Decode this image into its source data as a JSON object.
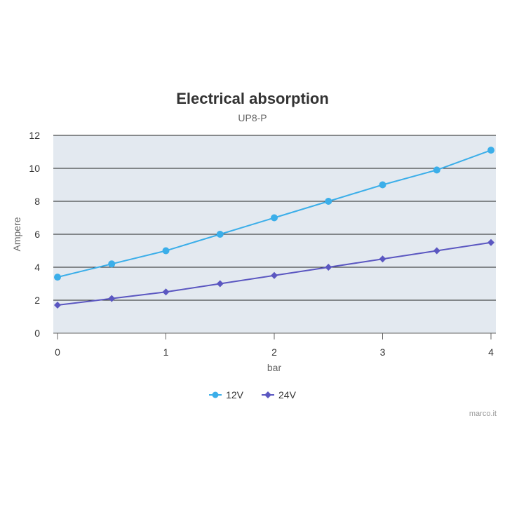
{
  "chart_data": {
    "type": "line",
    "title": "Electrical absorption",
    "subtitle": "UP8-P",
    "xlabel": "bar",
    "ylabel": "Ampere",
    "xlim": [
      0,
      4
    ],
    "ylim": [
      0,
      12
    ],
    "x_ticks": [
      "0",
      "1",
      "2",
      "3",
      "4"
    ],
    "y_ticks": [
      "0",
      "2",
      "4",
      "6",
      "8",
      "10",
      "12"
    ],
    "grid": true,
    "legend_position": "bottom-center",
    "plot_background": "#e3e9f0",
    "series": [
      {
        "name": "12V",
        "color": "#3baee9",
        "marker": "circle",
        "x": [
          0,
          0.5,
          1,
          1.5,
          2,
          2.5,
          3,
          3.5,
          4
        ],
        "y": [
          3.4,
          4.2,
          5,
          6,
          7,
          8,
          9,
          9.9,
          11.1
        ]
      },
      {
        "name": "24V",
        "color": "#5b57c1",
        "marker": "diamond",
        "x": [
          0,
          0.5,
          1,
          1.5,
          2,
          2.5,
          3,
          3.5,
          4
        ],
        "y": [
          1.7,
          2.1,
          2.5,
          3,
          3.5,
          4,
          4.5,
          5,
          5.5
        ]
      }
    ]
  },
  "credits": "marco.it"
}
